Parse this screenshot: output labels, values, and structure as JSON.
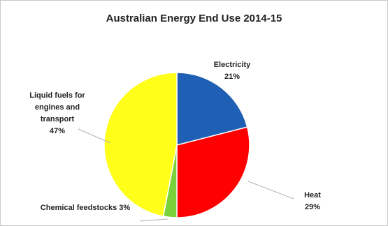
{
  "chart_data": {
    "type": "pie",
    "title": "Australian Energy End Use 2014-15",
    "slices": [
      {
        "label_lines": [
          "Electricity",
          "21%"
        ],
        "value": 21,
        "color": "#1f5fb4"
      },
      {
        "label_lines": [
          "Heat",
          "29%"
        ],
        "value": 29,
        "color": "#ff0000"
      },
      {
        "label_lines": [
          "Chemical feedstocks 3%"
        ],
        "value": 3,
        "color": "#7bd13a"
      },
      {
        "label_lines": [
          "Liquid fuels for",
          "engines and",
          "transport",
          "47%"
        ],
        "value": 47,
        "color": "#ffff1a"
      }
    ]
  }
}
